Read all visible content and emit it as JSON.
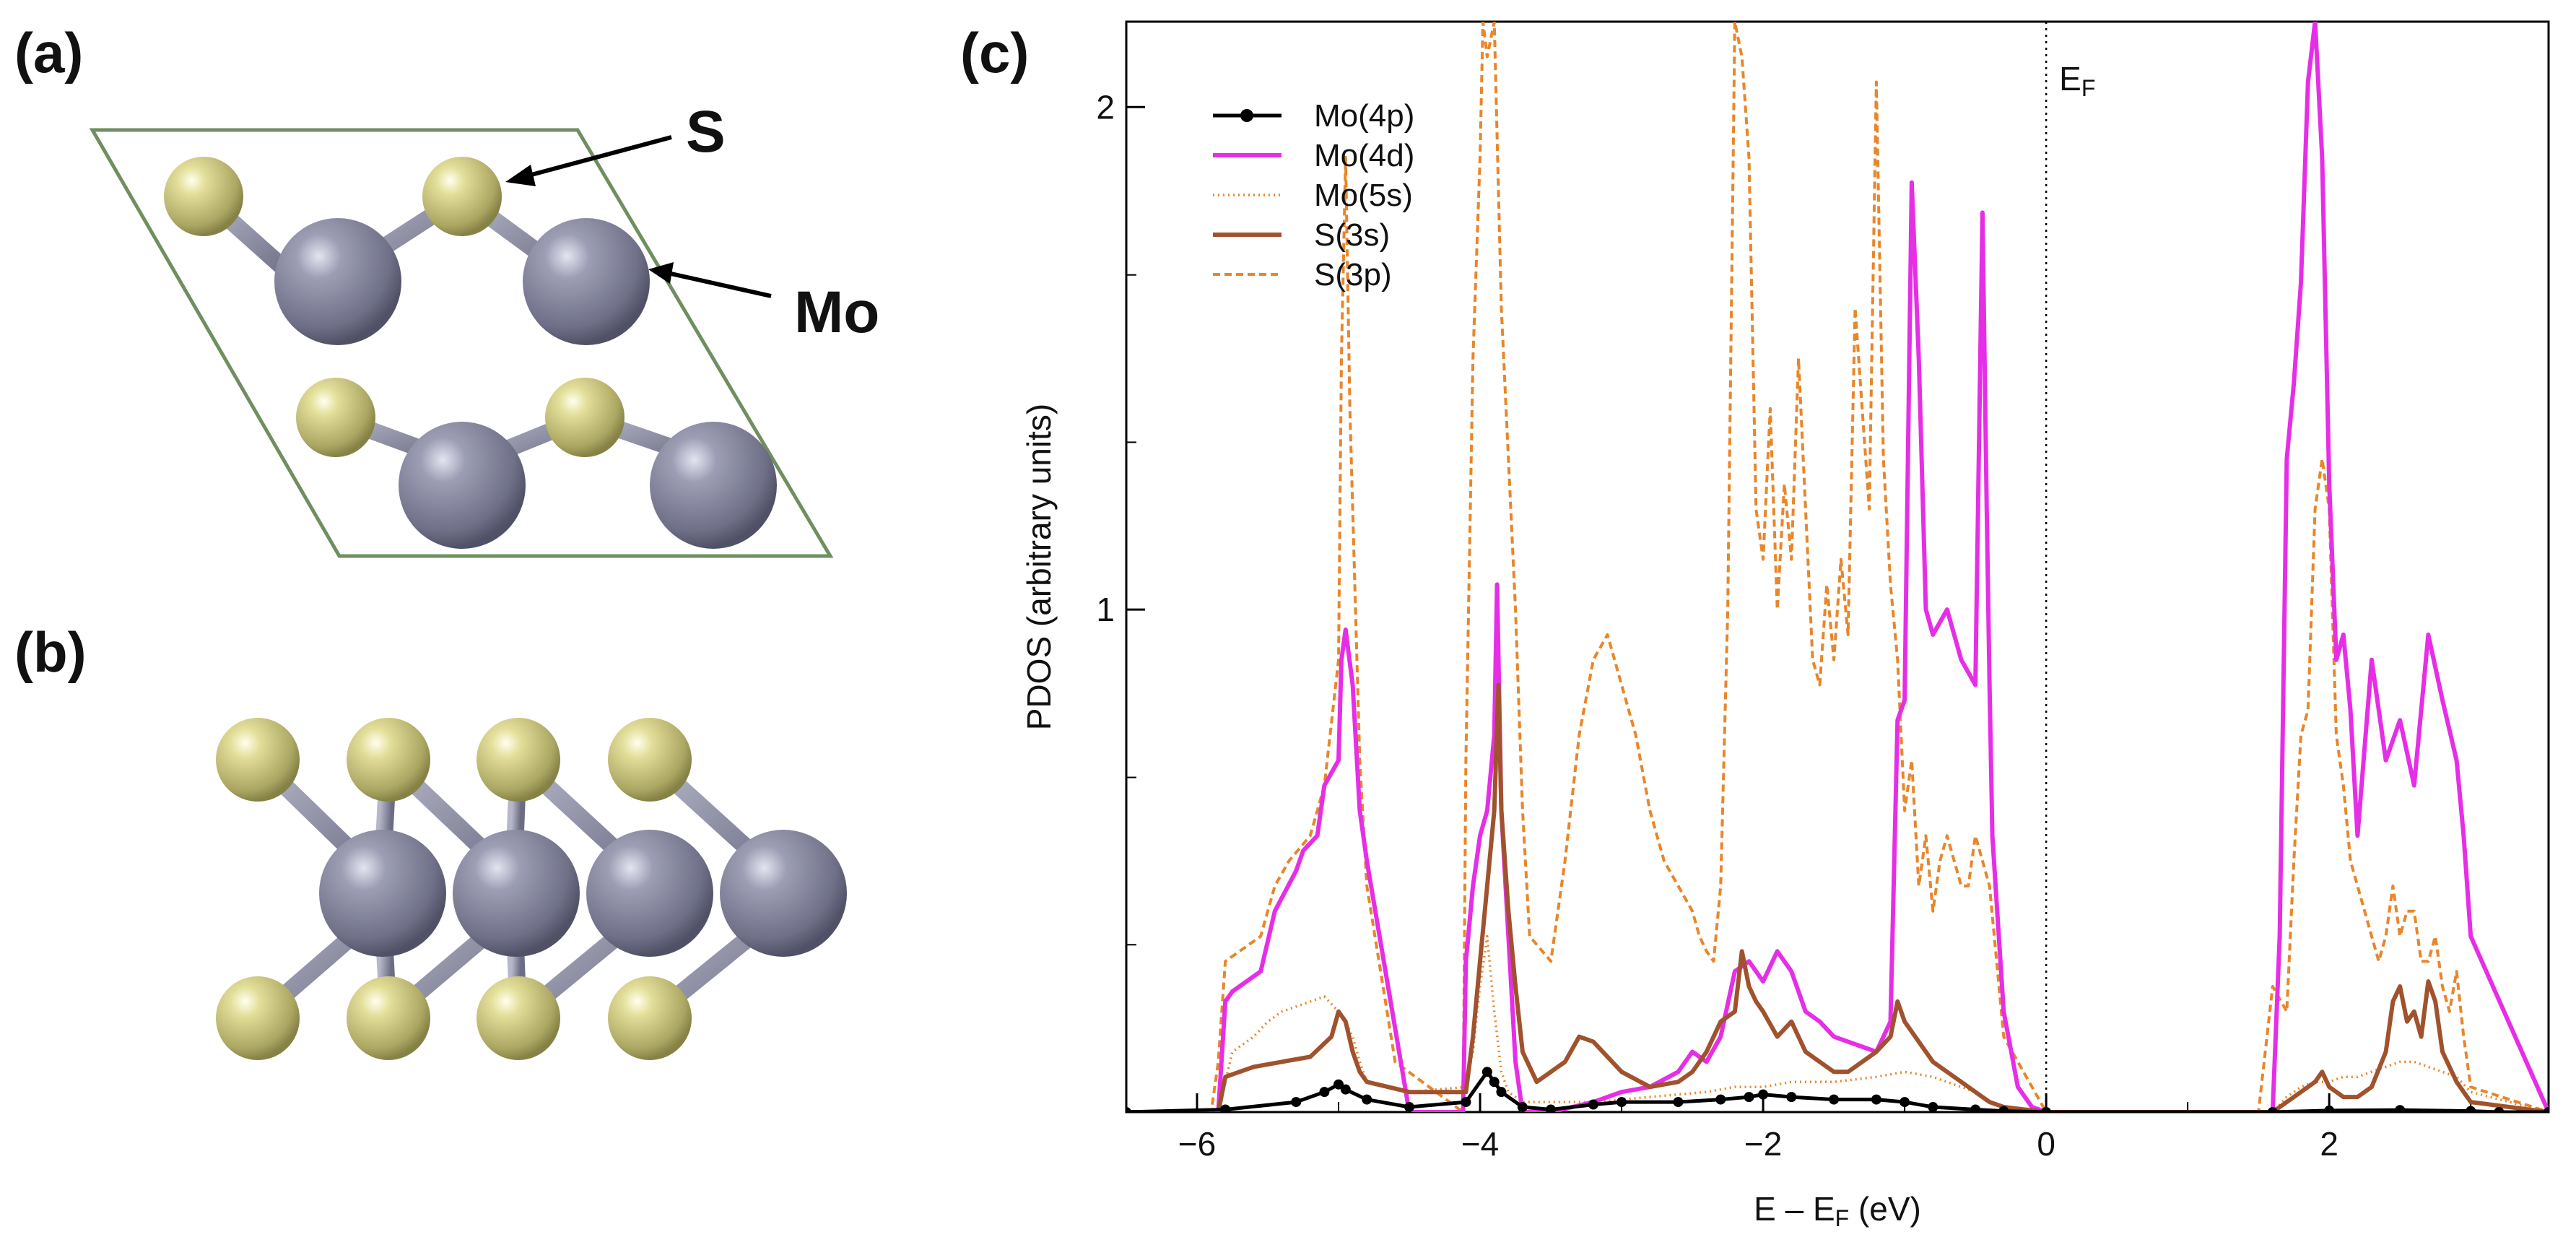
{
  "panels": {
    "a": {
      "label": "(a)"
    },
    "b": {
      "label": "(b)"
    },
    "c": {
      "label": "(c)"
    }
  },
  "atom_labels": {
    "sulfur": "S",
    "molybdenum": "Mo"
  },
  "colors": {
    "sulfur": "#cfcb82",
    "molybdenum": "#8d8ea4",
    "bond": "#8d8ea4",
    "cell": "#6f8f60",
    "Mo(4p)": "#000000",
    "Mo(4d)": "#e62ee6",
    "Mo(5s)": "#e8862a",
    "S(3s)": "#a0522d",
    "S(3p)": "#e8862a"
  },
  "chart_data": {
    "type": "line",
    "title": "",
    "xlabel": "E – E",
    "xlabel_sub": "F",
    "xlabel_unit": " (eV)",
    "ylabel": "PDOS (arbitrary units)",
    "xlim": [
      -6.5,
      3.55
    ],
    "ylim": [
      0,
      2.17
    ],
    "xticks": [
      -6,
      -4,
      -2,
      0,
      2
    ],
    "xtick_labels": [
      "−6",
      "−4",
      "−2",
      "0",
      "2"
    ],
    "yticks": [
      1,
      2
    ],
    "ytick_labels": [
      "1",
      "2"
    ],
    "grid": false,
    "legend_position": "top-left",
    "fermi_level": {
      "x": 0,
      "label": "E",
      "label_sub": "F"
    },
    "series": [
      {
        "name": "Mo(4p)",
        "style": "solid-markers",
        "x": [
          -6.5,
          -5.8,
          -5.3,
          -5.1,
          -5.0,
          -4.95,
          -4.8,
          -4.5,
          -4.1,
          -3.95,
          -3.9,
          -3.85,
          -3.7,
          -3.5,
          -3.2,
          -3.0,
          -2.6,
          -2.3,
          -2.1,
          -2.0,
          -1.8,
          -1.5,
          -1.2,
          -1.0,
          -0.8,
          -0.5,
          -0.3,
          0.0,
          1.6,
          2.0,
          2.5,
          3.0,
          3.2,
          3.55
        ],
        "y": [
          0.0,
          0.005,
          0.02,
          0.04,
          0.055,
          0.045,
          0.025,
          0.01,
          0.02,
          0.08,
          0.06,
          0.04,
          0.01,
          0.005,
          0.015,
          0.02,
          0.02,
          0.025,
          0.03,
          0.035,
          0.03,
          0.025,
          0.025,
          0.02,
          0.01,
          0.005,
          0.002,
          0.0,
          0.0,
          0.003,
          0.004,
          0.002,
          0.0,
          0.0
        ]
      },
      {
        "name": "Mo(4d)",
        "style": "solid",
        "x": [
          -6.5,
          -5.85,
          -5.8,
          -5.75,
          -5.7,
          -5.55,
          -5.45,
          -5.3,
          -5.25,
          -5.15,
          -5.1,
          -5.0,
          -4.98,
          -4.95,
          -4.9,
          -4.85,
          -4.8,
          -4.5,
          -4.12,
          -4.1,
          -4.05,
          -4.0,
          -3.95,
          -3.9,
          -3.88,
          -3.85,
          -3.8,
          -3.75,
          -3.7,
          -3.5,
          -3.2,
          -3.0,
          -2.8,
          -2.6,
          -2.5,
          -2.4,
          -2.3,
          -2.2,
          -2.1,
          -2.0,
          -1.9,
          -1.8,
          -1.7,
          -1.6,
          -1.5,
          -1.4,
          -1.3,
          -1.2,
          -1.1,
          -1.05,
          -1.0,
          -0.95,
          -0.9,
          -0.85,
          -0.8,
          -0.7,
          -0.6,
          -0.5,
          -0.45,
          -0.42,
          -0.4,
          -0.38,
          -0.3,
          -0.2,
          -0.1,
          0.0,
          1.5,
          1.6,
          1.65,
          1.7,
          1.75,
          1.8,
          1.85,
          1.9,
          1.95,
          2.0,
          2.05,
          2.1,
          2.15,
          2.2,
          2.3,
          2.4,
          2.5,
          2.6,
          2.7,
          2.8,
          2.9,
          2.95,
          3.0,
          3.55
        ],
        "y": [
          0.0,
          0.0,
          0.22,
          0.24,
          0.25,
          0.28,
          0.4,
          0.48,
          0.52,
          0.55,
          0.65,
          0.7,
          0.9,
          0.96,
          0.85,
          0.6,
          0.5,
          0.0,
          0.0,
          0.3,
          0.45,
          0.55,
          0.6,
          0.75,
          1.05,
          0.6,
          0.35,
          0.1,
          0.0,
          0.0,
          0.02,
          0.04,
          0.05,
          0.08,
          0.12,
          0.1,
          0.15,
          0.28,
          0.3,
          0.26,
          0.32,
          0.28,
          0.2,
          0.18,
          0.15,
          0.14,
          0.13,
          0.12,
          0.18,
          0.78,
          0.82,
          1.85,
          1.5,
          1.0,
          0.95,
          1.0,
          0.9,
          0.85,
          1.79,
          1.2,
          0.85,
          0.55,
          0.2,
          0.05,
          0.01,
          0.0,
          0.0,
          0.0,
          0.35,
          1.3,
          1.45,
          1.65,
          2.05,
          2.17,
          1.9,
          1.25,
          0.9,
          0.95,
          0.8,
          0.55,
          0.9,
          0.7,
          0.78,
          0.65,
          0.95,
          0.82,
          0.7,
          0.55,
          0.35,
          0.0
        ]
      },
      {
        "name": "Mo(5s)",
        "style": "dotted",
        "x": [
          -6.5,
          -5.85,
          -5.75,
          -5.6,
          -5.5,
          -5.4,
          -5.3,
          -5.2,
          -5.1,
          -5.0,
          -4.95,
          -4.9,
          -4.85,
          -4.8,
          -4.5,
          -4.1,
          -4.05,
          -4.0,
          -3.95,
          -3.9,
          -3.85,
          -3.8,
          -3.7,
          -3.5,
          -3.2,
          -2.8,
          -2.4,
          -2.2,
          -2.0,
          -1.8,
          -1.5,
          -1.2,
          -1.0,
          -0.8,
          -0.6,
          -0.5,
          -0.4,
          -0.3,
          0.0,
          1.6,
          1.7,
          1.8,
          1.9,
          2.0,
          2.1,
          2.2,
          2.3,
          2.4,
          2.5,
          2.6,
          2.7,
          2.8,
          2.9,
          3.0,
          3.55
        ],
        "y": [
          0.0,
          0.0,
          0.12,
          0.15,
          0.18,
          0.2,
          0.21,
          0.22,
          0.23,
          0.2,
          0.18,
          0.15,
          0.1,
          0.06,
          0.04,
          0.05,
          0.12,
          0.25,
          0.35,
          0.2,
          0.08,
          0.04,
          0.02,
          0.02,
          0.02,
          0.03,
          0.04,
          0.05,
          0.05,
          0.06,
          0.06,
          0.07,
          0.08,
          0.07,
          0.05,
          0.04,
          0.02,
          0.01,
          0.0,
          0.0,
          0.03,
          0.05,
          0.06,
          0.06,
          0.07,
          0.07,
          0.08,
          0.09,
          0.1,
          0.1,
          0.09,
          0.08,
          0.07,
          0.04,
          0.0
        ]
      },
      {
        "name": "S(3s)",
        "style": "solid",
        "x": [
          -6.5,
          -5.85,
          -5.8,
          -5.7,
          -5.6,
          -5.4,
          -5.2,
          -5.05,
          -5.0,
          -4.95,
          -4.9,
          -4.85,
          -4.8,
          -4.5,
          -4.1,
          -4.05,
          -4.0,
          -3.95,
          -3.9,
          -3.87,
          -3.85,
          -3.8,
          -3.75,
          -3.7,
          -3.6,
          -3.4,
          -3.3,
          -3.2,
          -3.0,
          -2.8,
          -2.6,
          -2.5,
          -2.4,
          -2.3,
          -2.2,
          -2.15,
          -2.1,
          -2.05,
          -2.0,
          -1.9,
          -1.8,
          -1.7,
          -1.6,
          -1.5,
          -1.4,
          -1.3,
          -1.2,
          -1.1,
          -1.05,
          -1.0,
          -0.9,
          -0.8,
          -0.7,
          -0.6,
          -0.5,
          -0.4,
          -0.3,
          0.0,
          1.6,
          1.7,
          1.8,
          1.9,
          1.95,
          2.0,
          2.1,
          2.2,
          2.3,
          2.4,
          2.45,
          2.5,
          2.55,
          2.6,
          2.65,
          2.7,
          2.75,
          2.8,
          2.9,
          3.0,
          3.55
        ],
        "y": [
          0.0,
          0.0,
          0.07,
          0.08,
          0.09,
          0.1,
          0.11,
          0.15,
          0.2,
          0.18,
          0.12,
          0.08,
          0.06,
          0.04,
          0.04,
          0.15,
          0.3,
          0.45,
          0.6,
          0.85,
          0.6,
          0.4,
          0.25,
          0.12,
          0.06,
          0.1,
          0.15,
          0.14,
          0.08,
          0.05,
          0.06,
          0.08,
          0.12,
          0.18,
          0.2,
          0.32,
          0.25,
          0.22,
          0.2,
          0.15,
          0.18,
          0.12,
          0.1,
          0.08,
          0.08,
          0.1,
          0.12,
          0.15,
          0.22,
          0.18,
          0.14,
          0.1,
          0.08,
          0.06,
          0.04,
          0.02,
          0.01,
          0.0,
          0.0,
          0.02,
          0.04,
          0.06,
          0.08,
          0.05,
          0.03,
          0.03,
          0.05,
          0.12,
          0.22,
          0.25,
          0.18,
          0.2,
          0.15,
          0.26,
          0.22,
          0.12,
          0.06,
          0.02,
          0.0
        ]
      },
      {
        "name": "S(3p)",
        "style": "dashed",
        "x": [
          -6.5,
          -5.9,
          -5.85,
          -5.8,
          -5.7,
          -5.55,
          -5.45,
          -5.35,
          -5.2,
          -5.1,
          -5.0,
          -4.98,
          -4.95,
          -4.92,
          -4.9,
          -4.85,
          -4.8,
          -4.6,
          -4.12,
          -4.1,
          -4.05,
          -4.0,
          -3.98,
          -3.95,
          -3.9,
          -3.85,
          -3.8,
          -3.75,
          -3.7,
          -3.65,
          -3.5,
          -3.4,
          -3.3,
          -3.2,
          -3.1,
          -3.0,
          -2.9,
          -2.8,
          -2.7,
          -2.6,
          -2.5,
          -2.45,
          -2.4,
          -2.35,
          -2.3,
          -2.25,
          -2.2,
          -2.15,
          -2.1,
          -2.05,
          -2.0,
          -1.95,
          -1.9,
          -1.85,
          -1.8,
          -1.75,
          -1.7,
          -1.65,
          -1.6,
          -1.55,
          -1.5,
          -1.45,
          -1.4,
          -1.35,
          -1.3,
          -1.25,
          -1.2,
          -1.15,
          -1.1,
          -1.05,
          -1.0,
          -0.95,
          -0.9,
          -0.85,
          -0.8,
          -0.75,
          -0.7,
          -0.65,
          -0.6,
          -0.55,
          -0.5,
          -0.45,
          -0.4,
          -0.35,
          -0.3,
          0.0,
          1.5,
          1.6,
          1.7,
          1.75,
          1.8,
          1.85,
          1.9,
          1.95,
          2.0,
          2.05,
          2.1,
          2.15,
          2.2,
          2.25,
          2.3,
          2.35,
          2.4,
          2.45,
          2.5,
          2.55,
          2.6,
          2.65,
          2.7,
          2.75,
          2.8,
          2.85,
          2.9,
          2.95,
          3.0,
          3.55
        ],
        "y": [
          0.0,
          0.0,
          0.1,
          0.3,
          0.32,
          0.35,
          0.45,
          0.5,
          0.55,
          0.65,
          0.9,
          1.5,
          1.9,
          1.4,
          1.2,
          0.7,
          0.45,
          0.1,
          0.0,
          0.7,
          1.5,
          1.9,
          2.17,
          2.1,
          2.17,
          1.6,
          1.3,
          1.0,
          0.6,
          0.35,
          0.3,
          0.5,
          0.75,
          0.9,
          0.95,
          0.85,
          0.75,
          0.6,
          0.5,
          0.45,
          0.4,
          0.35,
          0.32,
          0.3,
          0.45,
          1.0,
          2.17,
          2.1,
          1.9,
          1.2,
          1.1,
          1.4,
          1.0,
          1.25,
          1.1,
          1.5,
          1.2,
          0.9,
          0.85,
          1.05,
          0.9,
          1.1,
          0.95,
          1.6,
          1.4,
          1.2,
          2.05,
          1.3,
          1.05,
          0.9,
          0.6,
          0.7,
          0.45,
          0.55,
          0.4,
          0.5,
          0.55,
          0.5,
          0.45,
          0.45,
          0.55,
          0.5,
          0.45,
          0.3,
          0.15,
          0.0,
          0.0,
          0.25,
          0.2,
          0.5,
          0.75,
          0.8,
          1.2,
          1.3,
          1.2,
          0.75,
          0.65,
          0.5,
          0.45,
          0.4,
          0.35,
          0.3,
          0.35,
          0.45,
          0.35,
          0.4,
          0.4,
          0.3,
          0.3,
          0.35,
          0.25,
          0.2,
          0.28,
          0.15,
          0.05,
          0.0
        ]
      }
    ]
  }
}
